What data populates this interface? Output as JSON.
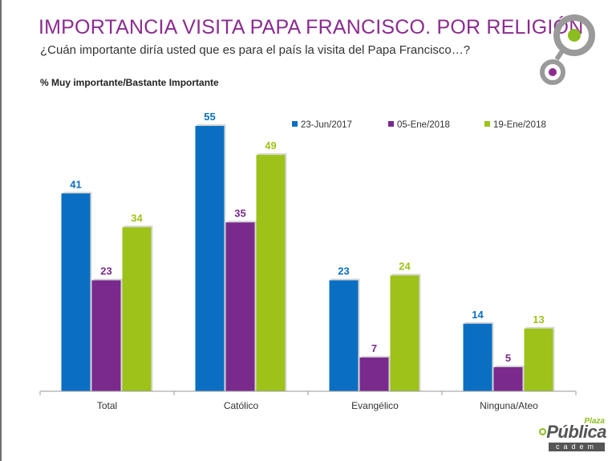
{
  "header": {
    "title": "IMPORTANCIA VISITA PAPA FRANCISCO. POR RELIGIÓN",
    "question": "¿Cuán importante diría usted que es para el país la visita del Papa Francisco…?",
    "subtitle": "% Muy importante/Bastante Importante"
  },
  "brand": {
    "plaza": "Plaza",
    "publica": "Pública",
    "cadem": "cadem"
  },
  "colors": {
    "title": "#8b2c8f",
    "series_1": "#0a6fc2",
    "series_2": "#7a2a8c",
    "series_3": "#9dc21a",
    "logo_outer": "#9a9a9a",
    "logo_green": "#8bbd1e",
    "logo_purple": "#8b2c8f"
  },
  "chart_data": {
    "type": "bar",
    "categories": [
      "Total",
      "Católico",
      "Evangélico",
      "Ninguna/Ateo"
    ],
    "series": [
      {
        "name": "23-Jun/2017",
        "values": [
          41,
          55,
          23,
          14
        ]
      },
      {
        "name": "05-Ene/2018",
        "values": [
          23,
          35,
          7,
          5
        ]
      },
      {
        "name": "19-Ene/2018",
        "values": [
          34,
          49,
          24,
          13
        ]
      }
    ],
    "ylim": [
      0,
      60
    ],
    "grid": false,
    "legend": "top-right",
    "data_labels": true
  }
}
